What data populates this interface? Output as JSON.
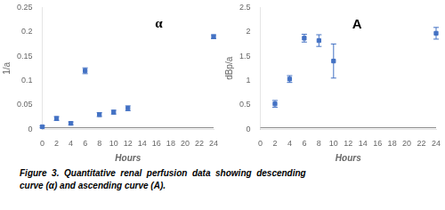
{
  "chart_data": [
    {
      "type": "scatter",
      "x": [
        0,
        2,
        4,
        6,
        8,
        10,
        12,
        24
      ],
      "values": [
        0.005,
        0.022,
        0.012,
        0.12,
        0.03,
        0.035,
        0.043,
        0.19
      ],
      "errors": [
        0.002,
        0.004,
        0.003,
        0.006,
        0.004,
        0.004,
        0.005,
        0.004
      ],
      "baseline": 0.003,
      "x_label": "Hours",
      "y_label": "1/a",
      "annotation": "α",
      "xlim": [
        0,
        24
      ],
      "xticks": [
        0,
        2,
        4,
        6,
        8,
        10,
        12,
        14,
        16,
        18,
        20,
        22,
        24
      ],
      "ylim": [
        0,
        0.25
      ],
      "yticks": [
        0,
        0.05,
        0.1,
        0.15,
        0.2,
        0.25
      ],
      "color": "#4472C4",
      "marker": "square",
      "grid": false
    },
    {
      "type": "scatter",
      "x": [
        2,
        4,
        6,
        8,
        10,
        24
      ],
      "values": [
        0.52,
        1.03,
        1.87,
        1.82,
        1.4,
        1.97
      ],
      "errors": [
        0.07,
        0.07,
        0.08,
        0.12,
        0.35,
        0.12
      ],
      "baseline": 0.03,
      "x_label": "Hours",
      "y_label": "dBp/a",
      "annotation": "A",
      "xlim": [
        0,
        24
      ],
      "xticks": [
        0,
        2,
        4,
        6,
        8,
        10,
        12,
        14,
        16,
        18,
        20,
        22,
        24
      ],
      "ylim": [
        0,
        2.5
      ],
      "yticks": [
        0,
        0.5,
        1,
        1.5,
        2,
        2.5
      ],
      "color": "#4472C4",
      "marker": "square",
      "grid": false
    }
  ],
  "caption": [
    "Figure  3.  Quantitative  renal  perfusion  data  showing  descending",
    "curve (α) and ascending curve (A)."
  ]
}
